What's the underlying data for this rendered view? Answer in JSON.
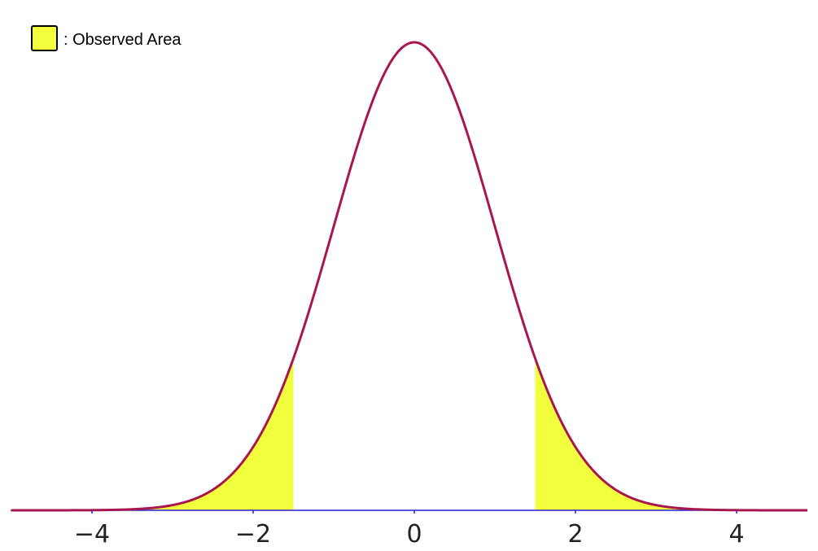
{
  "chart_data": {
    "type": "area",
    "distribution": "standard normal density",
    "mean": 0,
    "sd": 1,
    "xlim": [
      -5,
      5
    ],
    "ylim": [
      0,
      0.4
    ],
    "x_ticks": [
      -4,
      -2,
      0,
      2,
      4
    ],
    "x_tick_labels": [
      "−4",
      "−2",
      "0",
      "2",
      "4"
    ],
    "shaded_regions": [
      {
        "from": -5,
        "to": -1.5
      },
      {
        "from": 1.5,
        "to": 5
      }
    ],
    "legend": {
      "placement": "top-left",
      "label": ": Observed Area"
    },
    "colors": {
      "curve": "#a8174f",
      "fill": "#f2ff3c",
      "axis": "#2a1fd6",
      "swatch_border": "#000000"
    }
  }
}
